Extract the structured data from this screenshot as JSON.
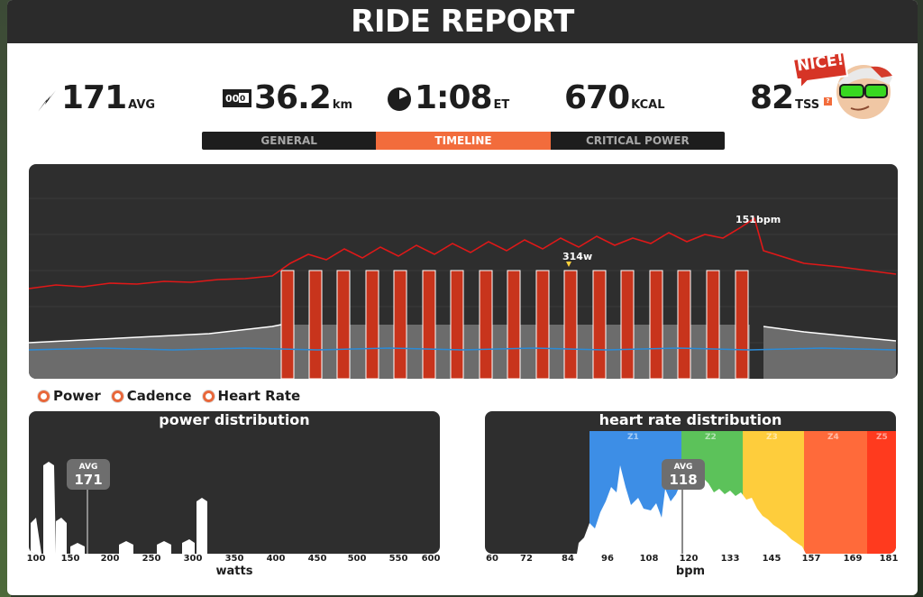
{
  "header": {
    "title": "RIDE REPORT"
  },
  "stats": [
    {
      "icon": "power-bolt-icon",
      "value": "171",
      "unit": "AVG"
    },
    {
      "icon": "odometer-icon",
      "value": "36.2",
      "unit": "km"
    },
    {
      "icon": "clock-icon",
      "value": "1:08",
      "unit": "ET"
    },
    {
      "icon": "",
      "value": "670",
      "unit": "KCAL"
    },
    {
      "icon": "",
      "value": "82",
      "unit": "TSS"
    }
  ],
  "badge": {
    "text": "NICE!"
  },
  "tabs": [
    {
      "label": "GENERAL",
      "active": false
    },
    {
      "label": "TIMELINE",
      "active": true
    },
    {
      "label": "CRITICAL POWER",
      "active": false
    }
  ],
  "timeline": {
    "peak_power_label": "314w",
    "peak_hr_label": "151bpm"
  },
  "legend": [
    {
      "label": "Power"
    },
    {
      "label": "Cadence"
    },
    {
      "label": "Heart Rate"
    }
  ],
  "power_distribution": {
    "title": "power distribution",
    "avg_label": "AVG",
    "avg_value": "171",
    "x_ticks": [
      "100",
      "150",
      "200",
      "250",
      "300",
      "350",
      "400",
      "450",
      "500",
      "550",
      "600"
    ],
    "x_label": "watts"
  },
  "heart_rate_distribution": {
    "title": "heart rate distribution",
    "avg_label": "AVG",
    "avg_value": "118",
    "zones": [
      "Z1",
      "Z2",
      "Z3",
      "Z4",
      "Z5"
    ],
    "zone_colors": [
      "#3d8ee6",
      "#5cc25a",
      "#fecd3c",
      "#ff6a3a",
      "#ff3a1e"
    ],
    "x_ticks": [
      "60",
      "72",
      "84",
      "96",
      "108",
      "120",
      "133",
      "145",
      "157",
      "169",
      "181"
    ],
    "x_label": "bpm"
  },
  "colors": {
    "accent": "#f26c3c",
    "power": "#c8341c",
    "heart_rate": "#e01818",
    "cadence": "#2a8bd8"
  }
}
